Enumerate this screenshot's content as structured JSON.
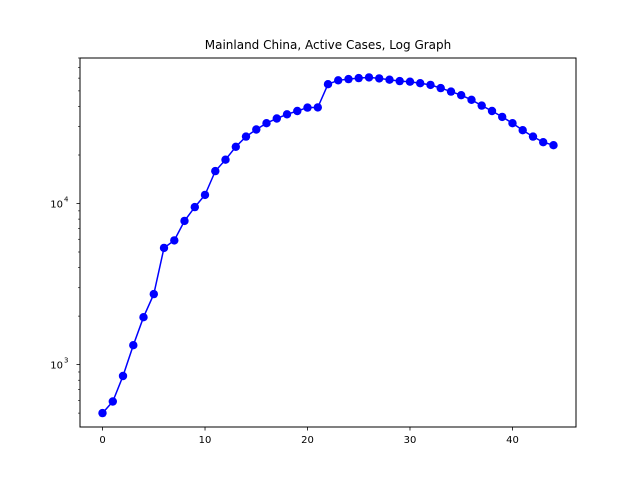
{
  "chart_data": {
    "type": "line",
    "title": "Mainland China, Active Cases, Log Graph",
    "xlabel": "",
    "ylabel": "",
    "yscale": "log",
    "xlim": [
      -2.2,
      46.2
    ],
    "ylim": [
      410,
      80000
    ],
    "grid": false,
    "legend": "none",
    "x_ticks": [
      0,
      10,
      20,
      30,
      40
    ],
    "y_ticks": [
      {
        "value": 1000,
        "base": "10",
        "exp": "3"
      },
      {
        "value": 10000,
        "base": "10",
        "exp": "4"
      }
    ],
    "series": [
      {
        "color": "#0000ff",
        "marker": "circle",
        "x": [
          0,
          1,
          2,
          3,
          4,
          5,
          6,
          7,
          8,
          9,
          10,
          11,
          12,
          13,
          14,
          15,
          16,
          17,
          18,
          19,
          20,
          21,
          22,
          23,
          24,
          25,
          26,
          27,
          28,
          29,
          30,
          31,
          32,
          33,
          34,
          35,
          36,
          37,
          38,
          39,
          40,
          41,
          42,
          43,
          44
        ],
        "values": [
          500,
          590,
          850,
          1320,
          1970,
          2740,
          5300,
          5900,
          7800,
          9500,
          11300,
          15900,
          18700,
          22500,
          26000,
          28800,
          31500,
          33700,
          35800,
          37500,
          39400,
          39500,
          55000,
          58200,
          59200,
          60000,
          60600,
          59800,
          58700,
          57500,
          57000,
          55800,
          54500,
          52000,
          49500,
          47000,
          44000,
          40500,
          37500,
          34500,
          31500,
          28500,
          26000,
          24000,
          23000
        ]
      }
    ]
  }
}
